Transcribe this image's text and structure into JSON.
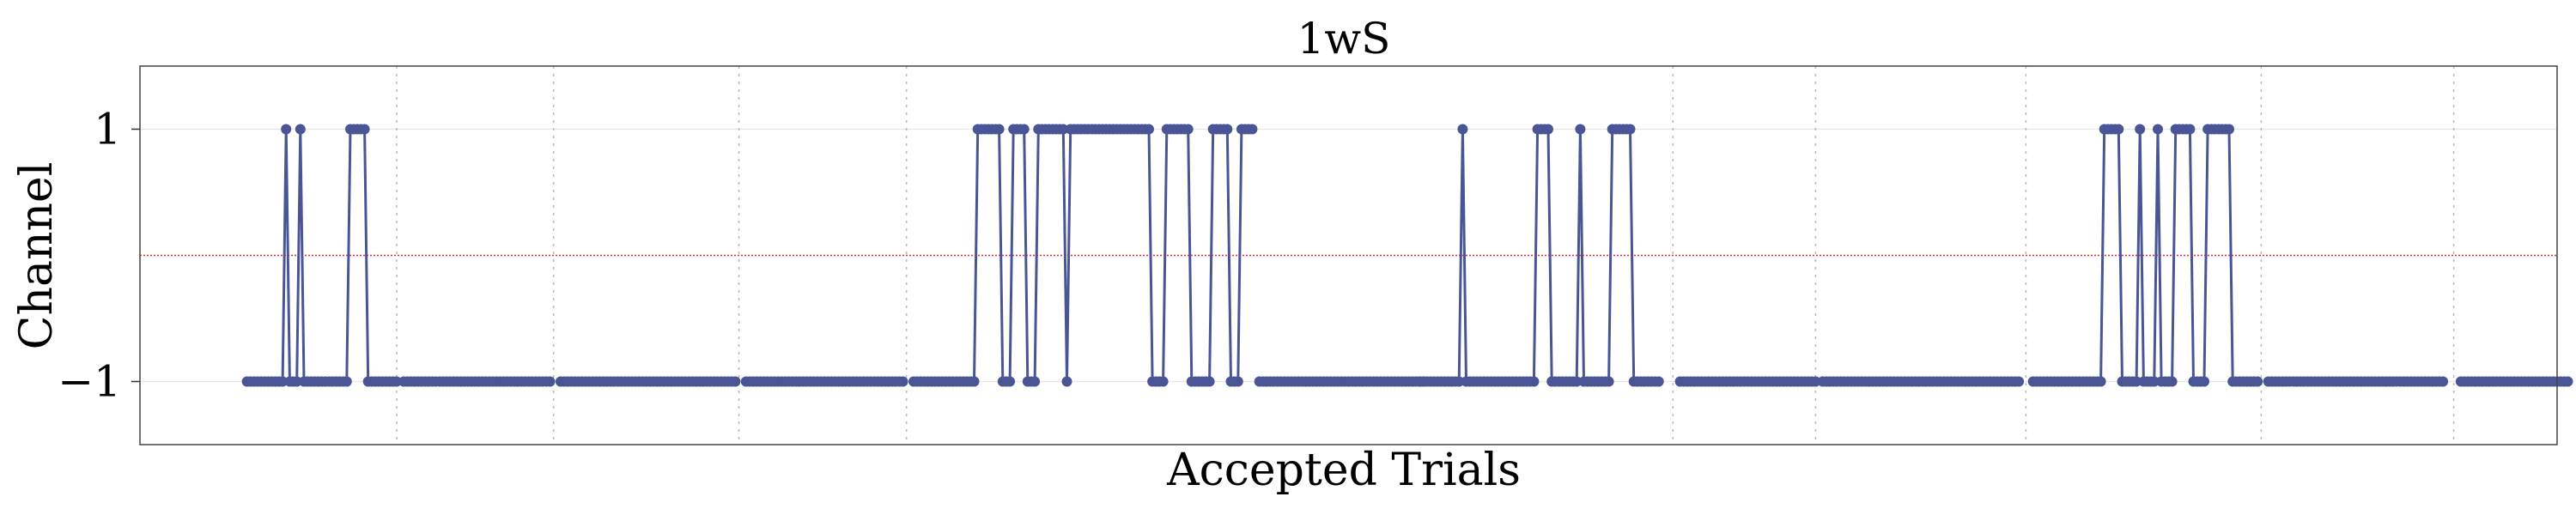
{
  "chart_data": {
    "type": "line",
    "title": "1wS",
    "xlabel": "Accepted Trials",
    "ylabel": "Channel",
    "y_ticks": [
      {
        "value": 1,
        "label": "1"
      },
      {
        "value": -1,
        "label": "−1"
      }
    ],
    "ylim": [
      -1.5,
      1.5
    ],
    "xlim": [
      -30,
      648
    ],
    "threshold_line": {
      "value": 0,
      "color": "#e0303a",
      "style": "dotted"
    },
    "session_boundaries": [
      42,
      86,
      138,
      185,
      400,
      440,
      499,
      565,
      619
    ],
    "grid": true,
    "legend": "none",
    "series": [
      {
        "color": "#4a5595",
        "marker": "circle",
        "segments": [
          {
            "x_start": 0,
            "values": [
              -1,
              -1,
              -1,
              -1,
              -1,
              -1,
              -1,
              -1,
              -1,
              -1,
              -1,
              1,
              -1,
              -1,
              -1,
              1,
              -1,
              -1,
              -1,
              -1,
              -1,
              -1,
              -1,
              -1,
              -1,
              -1,
              -1,
              -1,
              -1,
              1,
              1,
              1,
              1,
              1,
              -1,
              -1,
              -1,
              -1,
              -1,
              -1,
              -1,
              -1,
              -1
            ]
          },
          {
            "x_start": 44,
            "values": [
              -1,
              -1,
              -1,
              -1,
              -1,
              -1,
              -1,
              -1,
              -1,
              -1,
              -1,
              -1,
              -1,
              -1,
              -1,
              -1,
              -1,
              -1,
              -1,
              -1,
              -1,
              -1,
              -1,
              -1,
              -1,
              -1,
              -1,
              -1,
              -1,
              -1,
              -1,
              -1,
              -1,
              -1,
              -1,
              -1,
              -1,
              -1,
              -1,
              -1,
              -1,
              -1
            ]
          },
          {
            "x_start": 88,
            "values": [
              -1,
              -1,
              -1,
              -1,
              -1,
              -1,
              -1,
              -1,
              -1,
              -1,
              -1,
              -1,
              -1,
              -1,
              -1,
              -1,
              -1,
              -1,
              -1,
              -1,
              -1,
              -1,
              -1,
              -1,
              -1,
              -1,
              -1,
              -1,
              -1,
              -1,
              -1,
              -1,
              -1,
              -1,
              -1,
              -1,
              -1,
              -1,
              -1,
              -1,
              -1,
              -1,
              -1,
              -1,
              -1,
              -1,
              -1,
              -1,
              -1,
              -1
            ]
          },
          {
            "x_start": 140,
            "values": [
              -1,
              -1,
              -1,
              -1,
              -1,
              -1,
              -1,
              -1,
              -1,
              -1,
              -1,
              -1,
              -1,
              -1,
              -1,
              -1,
              -1,
              -1,
              -1,
              -1,
              -1,
              -1,
              -1,
              -1,
              -1,
              -1,
              -1,
              -1,
              -1,
              -1,
              -1,
              -1,
              -1,
              -1,
              -1,
              -1,
              -1,
              -1,
              -1,
              -1,
              -1,
              -1,
              -1,
              -1,
              -1
            ]
          },
          {
            "x_start": 187,
            "values": [
              -1,
              -1,
              -1,
              -1,
              -1,
              -1,
              -1,
              -1,
              -1,
              -1,
              -1,
              -1,
              -1,
              -1,
              -1,
              -1,
              -1,
              -1,
              1,
              1,
              1,
              1,
              1,
              1,
              1,
              -1,
              -1,
              -1,
              1,
              1,
              1,
              1,
              -1,
              -1,
              -1,
              1,
              1,
              1,
              1,
              1,
              1,
              1,
              1,
              -1,
              1,
              1,
              1,
              1,
              1,
              1,
              1,
              1,
              1,
              1,
              1,
              1,
              1,
              1,
              1,
              1,
              1,
              1,
              1,
              1,
              1,
              1,
              1,
              -1,
              -1,
              -1,
              -1,
              1,
              1,
              1,
              1,
              1,
              1,
              1,
              -1,
              -1,
              -1,
              -1,
              -1,
              -1,
              1,
              1,
              1,
              1,
              1,
              -1,
              -1,
              -1,
              1,
              1,
              1,
              1
            ]
          },
          {
            "x_start": 284,
            "values": [
              -1,
              -1,
              -1,
              -1,
              -1,
              -1,
              -1,
              -1,
              -1,
              -1,
              -1,
              -1,
              -1,
              -1,
              -1,
              -1,
              -1,
              -1,
              -1,
              -1,
              -1,
              -1,
              -1,
              -1,
              -1,
              -1,
              -1,
              -1,
              -1,
              -1,
              -1,
              -1,
              -1,
              -1,
              -1,
              -1,
              -1,
              -1,
              -1,
              -1,
              -1,
              -1,
              -1,
              -1,
              -1,
              -1,
              -1
            ]
          },
          {
            "x_start": 329,
            "values": [
              -1,
              -1,
              -1,
              -1,
              -1,
              -1,
              -1,
              -1,
              -1,
              -1,
              -1,
              -1,
              1,
              -1,
              -1,
              -1,
              -1,
              -1,
              -1,
              -1,
              -1,
              -1,
              -1,
              -1,
              -1,
              -1,
              -1,
              -1,
              -1,
              -1,
              -1,
              -1,
              -1,
              1,
              1,
              1,
              1,
              -1,
              -1,
              -1,
              -1,
              -1,
              -1,
              -1,
              -1,
              1,
              -1,
              -1,
              -1,
              -1,
              -1,
              -1,
              -1,
              -1,
              1,
              1,
              1,
              1,
              1,
              1,
              -1,
              -1,
              -1,
              -1,
              -1,
              -1,
              -1,
              -1
            ]
          },
          {
            "x_start": 402,
            "values": [
              -1,
              -1,
              -1,
              -1,
              -1,
              -1,
              -1,
              -1,
              -1,
              -1,
              -1,
              -1,
              -1,
              -1,
              -1,
              -1,
              -1,
              -1,
              -1,
              -1,
              -1,
              -1,
              -1,
              -1,
              -1,
              -1,
              -1,
              -1,
              -1,
              -1,
              -1,
              -1,
              -1,
              -1,
              -1,
              -1,
              -1,
              -1,
              -1
            ]
          },
          {
            "x_start": 442,
            "values": [
              -1,
              -1,
              -1,
              -1,
              -1,
              -1,
              -1,
              -1,
              -1,
              -1,
              -1,
              -1,
              -1,
              -1,
              -1,
              -1,
              -1,
              -1,
              -1,
              -1,
              -1,
              -1,
              -1,
              -1,
              -1,
              -1,
              -1,
              -1,
              -1,
              -1,
              -1,
              -1,
              -1,
              -1,
              -1,
              -1,
              -1,
              -1,
              -1,
              -1,
              -1,
              -1,
              -1,
              -1,
              -1,
              -1,
              -1,
              -1,
              -1,
              -1,
              -1,
              -1,
              -1,
              -1,
              -1,
              -1
            ]
          },
          {
            "x_start": 501,
            "values": [
              -1,
              -1,
              -1,
              -1,
              -1,
              -1,
              -1,
              -1,
              -1,
              -1,
              -1,
              -1,
              -1,
              -1,
              -1,
              -1,
              -1,
              -1,
              -1,
              -1,
              1,
              1,
              1,
              1,
              1,
              -1,
              -1,
              -1,
              -1,
              -1,
              1,
              -1,
              -1,
              -1,
              -1,
              1,
              -1,
              -1,
              -1,
              -1,
              1,
              1,
              1,
              1,
              1,
              -1,
              -1,
              -1,
              -1,
              1,
              1,
              1,
              1,
              1,
              1,
              1,
              -1,
              -1,
              -1,
              -1,
              -1,
              -1,
              -1,
              -1
            ]
          },
          {
            "x_start": 567,
            "values": [
              -1,
              -1,
              -1,
              -1,
              -1,
              -1,
              -1,
              -1,
              -1,
              -1,
              -1,
              -1,
              -1,
              -1,
              -1,
              -1,
              -1,
              -1,
              -1,
              -1,
              -1,
              -1,
              -1,
              -1,
              -1,
              -1,
              -1,
              -1,
              -1,
              -1,
              -1,
              -1,
              -1,
              -1,
              -1,
              -1,
              -1,
              -1,
              -1,
              -1,
              -1,
              -1,
              -1,
              -1,
              -1,
              -1,
              -1,
              -1,
              -1,
              -1
            ]
          },
          {
            "x_start": 621,
            "values": [
              -1,
              -1,
              -1,
              -1,
              -1,
              -1,
              -1,
              -1,
              -1,
              -1,
              -1,
              -1,
              -1,
              -1,
              -1,
              -1,
              -1,
              -1,
              -1,
              -1,
              -1,
              -1,
              -1,
              -1,
              -1,
              -1,
              -1,
              -1,
              -1,
              -1,
              -1
            ]
          }
        ]
      }
    ]
  }
}
